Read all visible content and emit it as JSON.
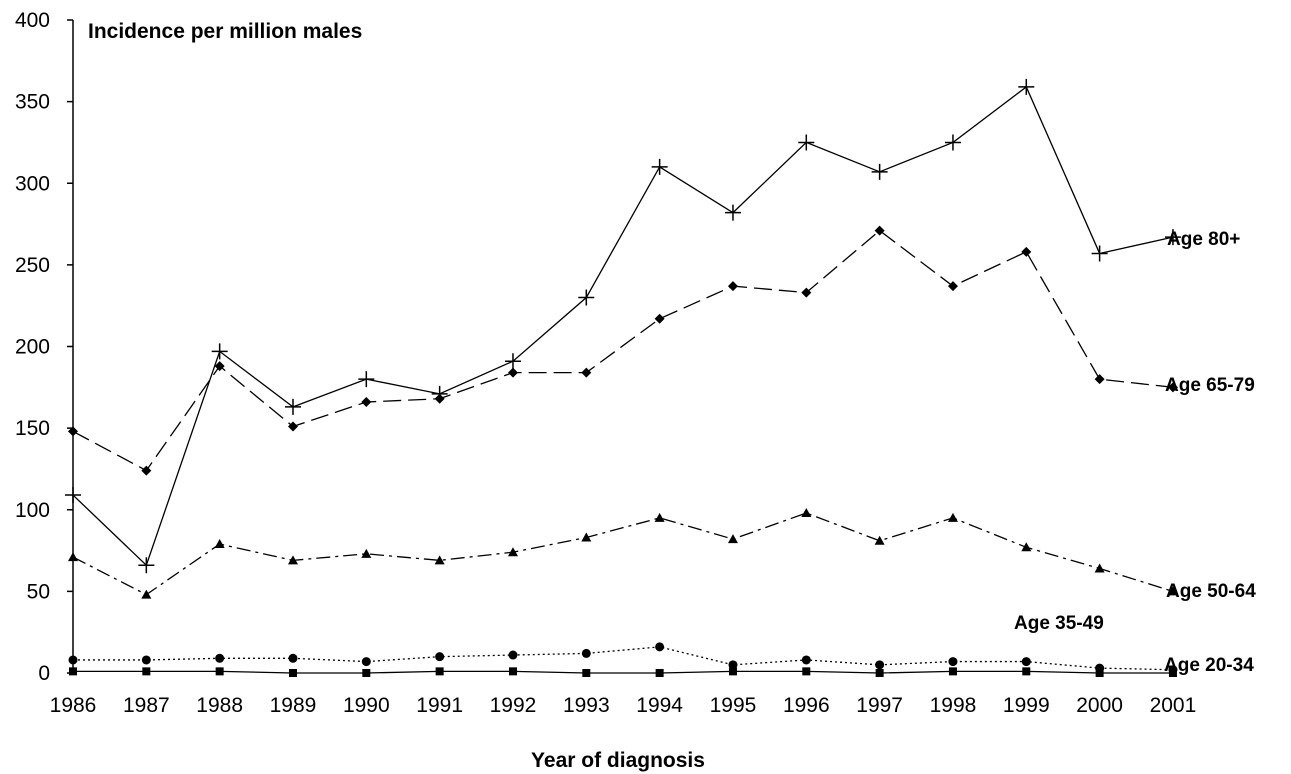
{
  "chart_data": {
    "type": "line",
    "title": "",
    "ylabel": "Incidence per million males",
    "xlabel": "Year of diagnosis",
    "ylim": [
      0,
      400
    ],
    "yticks": [
      0,
      50,
      100,
      150,
      200,
      250,
      300,
      350,
      400
    ],
    "grid": false,
    "x": [
      "1986",
      "1987",
      "1988",
      "1989",
      "1990",
      "1991",
      "1992",
      "1993",
      "1994",
      "1995",
      "1996",
      "1997",
      "1998",
      "1999",
      "2000",
      "2001"
    ],
    "series": [
      {
        "name": "Age 80+",
        "marker": "plus",
        "dash": "solid",
        "values": [
          109,
          66,
          197,
          163,
          180,
          171,
          191,
          230,
          310,
          282,
          325,
          307,
          325,
          359,
          257,
          267
        ]
      },
      {
        "name": "Age 65-79",
        "marker": "diamond",
        "dash": "long-dash",
        "values": [
          148,
          124,
          188,
          151,
          166,
          168,
          184,
          184,
          217,
          237,
          233,
          271,
          237,
          258,
          180,
          175
        ]
      },
      {
        "name": "Age 50-64",
        "marker": "triangle",
        "dash": "dash-dot",
        "values": [
          71,
          48,
          79,
          69,
          73,
          69,
          74,
          83,
          95,
          82,
          98,
          81,
          95,
          77,
          64,
          50
        ]
      },
      {
        "name": "Age 35-49",
        "marker": "circle",
        "dash": "dotted",
        "values": [
          8,
          8,
          9,
          9,
          7,
          10,
          11,
          12,
          16,
          5,
          8,
          5,
          7,
          7,
          3,
          2
        ]
      },
      {
        "name": "Age 20-34",
        "marker": "square",
        "dash": "solid",
        "values": [
          1,
          1,
          1,
          0,
          0,
          1,
          1,
          0,
          0,
          1,
          1,
          0,
          1,
          1,
          0,
          0
        ]
      }
    ]
  }
}
